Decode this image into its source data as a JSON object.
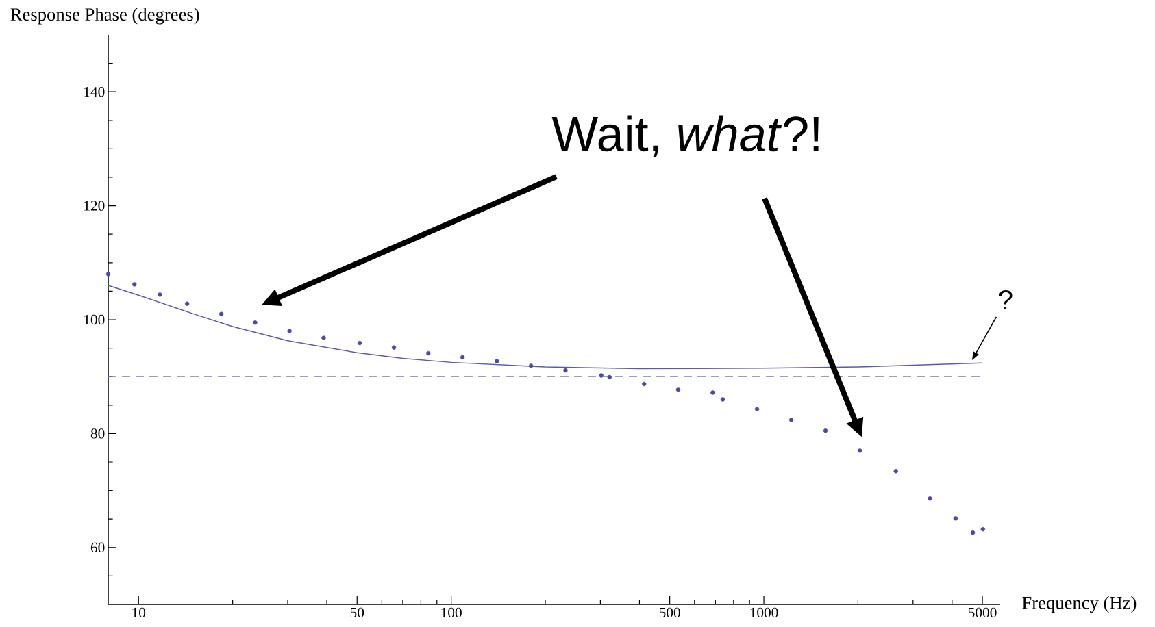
{
  "chart_data": {
    "type": "line",
    "xlabel": "Frequency (Hz)",
    "ylabel": "Response Phase (degrees)",
    "log": "x",
    "xlim": [
      8,
      5700
    ],
    "ylim": [
      50,
      150
    ],
    "xticks": [
      10,
      {
        "value": 20,
        "label": null
      },
      {
        "value": 30,
        "label": null
      },
      {
        "value": 40,
        "label": null
      },
      50,
      {
        "value": 60,
        "label": null
      },
      {
        "value": 70,
        "label": null
      },
      {
        "value": 80,
        "label": null
      },
      {
        "value": 90,
        "label": null
      },
      100,
      {
        "value": 200,
        "label": null
      },
      {
        "value": 300,
        "label": null
      },
      {
        "value": 400,
        "label": null
      },
      500,
      {
        "value": 600,
        "label": null
      },
      {
        "value": 700,
        "label": null
      },
      {
        "value": 800,
        "label": null
      },
      {
        "value": 900,
        "label": null
      },
      1000,
      {
        "value": 2000,
        "label": null
      },
      {
        "value": 3000,
        "label": null
      },
      {
        "value": 4000,
        "label": null
      },
      5000
    ],
    "yticks": [
      {
        "value": 55,
        "label": null
      },
      60,
      {
        "value": 65,
        "label": null
      },
      {
        "value": 70,
        "label": null
      },
      {
        "value": 75,
        "label": null
      },
      80,
      {
        "value": 85,
        "label": null
      },
      {
        "value": 90,
        "label": null
      },
      {
        "value": 95,
        "label": null
      },
      100,
      {
        "value": 105,
        "label": null
      },
      {
        "value": 110,
        "label": null
      },
      {
        "value": 115,
        "label": null
      },
      120,
      {
        "value": 125,
        "label": null
      },
      {
        "value": 130,
        "label": null
      },
      {
        "value": 135,
        "label": null
      },
      140,
      {
        "value": 145,
        "label": null
      }
    ],
    "grid": false,
    "series": [
      {
        "color": "#5a5aae",
        "line_style": "solid",
        "marker": "none",
        "x": [
          8,
          10,
          15,
          20,
          30,
          50,
          70,
          100,
          200,
          400,
          1000,
          2000,
          5000
        ],
        "values": [
          106,
          104.3,
          101,
          98.8,
          96.3,
          94.2,
          93.2,
          92.5,
          91.7,
          91.4,
          91.5,
          91.7,
          92.4
        ]
      },
      {
        "type": "scatter",
        "color": "#4b4ba3",
        "marker": "circle",
        "x": [
          8,
          9.7,
          11.7,
          14.3,
          18.4,
          23.6,
          30.4,
          39.1,
          51,
          65.6,
          84.5,
          108.7,
          140,
          180,
          232,
          302,
          321,
          414,
          532,
          686,
          739,
          951,
          1224,
          1575,
          2028,
          2644,
          3399,
          4105,
          4660,
          5020
        ],
        "values": [
          108,
          106.2,
          104.4,
          102.8,
          101,
          99.5,
          98,
          96.8,
          95.9,
          95.1,
          94.1,
          93.4,
          92.7,
          91.9,
          91.1,
          90.2,
          89.9,
          88.7,
          87.7,
          87.2,
          86,
          84.3,
          82.4,
          80.5,
          77,
          73.4,
          68.6,
          65.1,
          62.6,
          63.2
        ]
      }
    ],
    "ref_lines": [
      {
        "axis": "y",
        "value": 90,
        "color": "#7a7acc",
        "line_style": "dashed"
      }
    ],
    "annotations": [
      "Wait, *what*?!",
      "?"
    ]
  }
}
